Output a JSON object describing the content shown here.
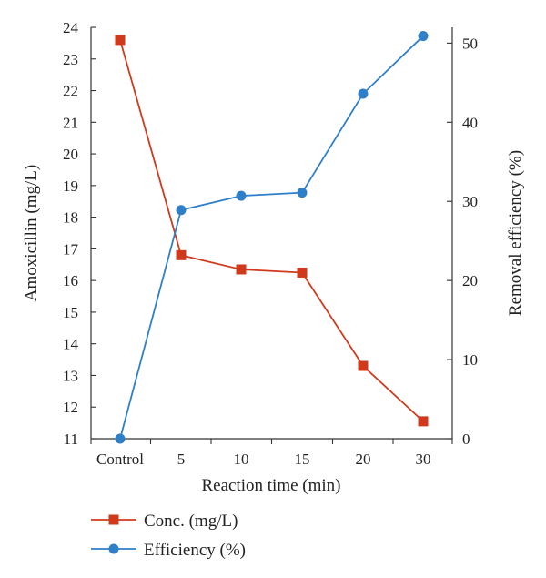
{
  "chart_data": {
    "type": "line",
    "categories": [
      "Control",
      "5",
      "10",
      "15",
      "20",
      "30"
    ],
    "xlabel": "Reaction time (min)",
    "ylabel_left": "Amoxicillin (mg/L)",
    "ylabel_right": "Removal efficiency (%)",
    "ylim_left": [
      11,
      24
    ],
    "yticks_left": [
      11,
      12,
      13,
      14,
      15,
      16,
      17,
      18,
      19,
      20,
      21,
      22,
      23,
      24
    ],
    "ylim_right": [
      0,
      52
    ],
    "yticks_right": [
      0,
      10,
      20,
      30,
      40,
      50
    ],
    "grid": false,
    "legend_position": "bottom-left",
    "series": [
      {
        "name": "Conc. (mg/L)",
        "axis": "left",
        "marker": "square",
        "color": "#d03a1c",
        "values": [
          23.6,
          16.8,
          16.35,
          16.25,
          13.3,
          11.55
        ]
      },
      {
        "name": "Efficiency (%)",
        "axis": "right",
        "marker": "circle",
        "color": "#2f7fc8",
        "values": [
          0,
          28.9,
          30.7,
          31.1,
          43.6,
          50.9
        ]
      }
    ]
  }
}
